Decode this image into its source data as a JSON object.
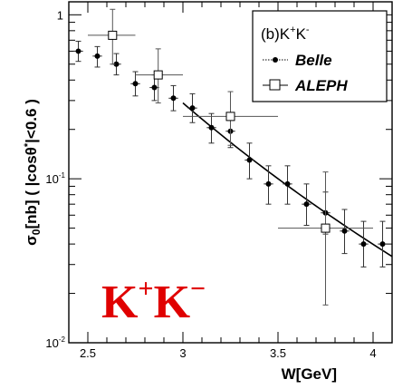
{
  "chart_data": {
    "type": "scatter",
    "title": "",
    "xlabel": "W[GeV]",
    "ylabel_parts": {
      "sigma": "σ",
      "sub": "0",
      "rest": "[nb] ( |cos",
      "theta": "θ",
      "star": "*",
      "tail": "|<0.6 )"
    },
    "xlim": [
      2.4,
      4.1
    ],
    "ylim": [
      0.01,
      1.2
    ],
    "yscale": "log",
    "xticks": [
      2.5,
      3,
      3.5,
      4
    ],
    "xtick_labels": [
      "2.5",
      "3",
      "3.5",
      "4"
    ],
    "yticks": [
      {
        "value": 1,
        "base": "1",
        "exp": ""
      },
      {
        "value": 0.1,
        "base": "10",
        "exp": "-1"
      },
      {
        "value": 0.01,
        "base": "10",
        "exp": "-2"
      }
    ],
    "legend": {
      "title_prefix": "(b)K",
      "title_sup1": "+",
      "title_mid": "K",
      "title_sup2": "-",
      "entries": [
        "Belle",
        "ALEPH"
      ],
      "position": "top-right"
    },
    "annotation": {
      "base1": "K",
      "sup1": "+",
      "base2": "K",
      "sup2": "−"
    },
    "series": [
      {
        "name": "Belle",
        "marker": "filled-circle",
        "points": [
          {
            "x": 2.45,
            "y": 0.6,
            "xerr": 0.025,
            "ylo": 0.52,
            "yhi": 0.69
          },
          {
            "x": 2.55,
            "y": 0.56,
            "xerr": 0.025,
            "ylo": 0.48,
            "yhi": 0.64
          },
          {
            "x": 2.65,
            "y": 0.5,
            "xerr": 0.025,
            "ylo": 0.43,
            "yhi": 0.58
          },
          {
            "x": 2.75,
            "y": 0.38,
            "xerr": 0.025,
            "ylo": 0.32,
            "yhi": 0.45
          },
          {
            "x": 2.85,
            "y": 0.36,
            "xerr": 0.025,
            "ylo": 0.3,
            "yhi": 0.43
          },
          {
            "x": 2.95,
            "y": 0.31,
            "xerr": 0.025,
            "ylo": 0.26,
            "yhi": 0.37
          },
          {
            "x": 3.05,
            "y": 0.27,
            "xerr": 0.025,
            "ylo": 0.22,
            "yhi": 0.33
          },
          {
            "x": 3.15,
            "y": 0.205,
            "xerr": 0.025,
            "ylo": 0.165,
            "yhi": 0.25
          },
          {
            "x": 3.25,
            "y": 0.195,
            "xerr": 0.025,
            "ylo": 0.155,
            "yhi": 0.24
          },
          {
            "x": 3.35,
            "y": 0.13,
            "xerr": 0.025,
            "ylo": 0.1,
            "yhi": 0.165
          },
          {
            "x": 3.45,
            "y": 0.093,
            "xerr": 0.025,
            "ylo": 0.07,
            "yhi": 0.12
          },
          {
            "x": 3.55,
            "y": 0.093,
            "xerr": 0.025,
            "ylo": 0.07,
            "yhi": 0.12
          },
          {
            "x": 3.65,
            "y": 0.07,
            "xerr": 0.025,
            "ylo": 0.052,
            "yhi": 0.093
          },
          {
            "x": 3.75,
            "y": 0.062,
            "xerr": 0.025,
            "ylo": 0.046,
            "yhi": 0.083
          },
          {
            "x": 3.85,
            "y": 0.048,
            "xerr": 0.025,
            "ylo": 0.035,
            "yhi": 0.065
          },
          {
            "x": 3.95,
            "y": 0.04,
            "xerr": 0.025,
            "ylo": 0.029,
            "yhi": 0.055
          },
          {
            "x": 4.05,
            "y": 0.04,
            "xerr": 0.025,
            "ylo": 0.029,
            "yhi": 0.055
          }
        ]
      },
      {
        "name": "ALEPH",
        "marker": "open-square",
        "points": [
          {
            "x": 2.63,
            "y": 0.75,
            "xlo": 2.5,
            "xhi": 2.75,
            "ylo": 0.5,
            "yhi": 1.08
          },
          {
            "x": 2.87,
            "y": 0.43,
            "xlo": 2.75,
            "xhi": 3.0,
            "ylo": 0.29,
            "yhi": 0.62
          },
          {
            "x": 3.25,
            "y": 0.24,
            "xlo": 3.0,
            "xhi": 3.5,
            "ylo": 0.16,
            "yhi": 0.34
          },
          {
            "x": 3.75,
            "y": 0.05,
            "xlo": 3.5,
            "xhi": 4.0,
            "ylo": 0.017,
            "yhi": 0.11
          }
        ]
      }
    ],
    "fit_curve": {
      "x_start": 3.0,
      "x_end": 4.1,
      "y_at_start": 0.29,
      "power": -6.9
    }
  }
}
